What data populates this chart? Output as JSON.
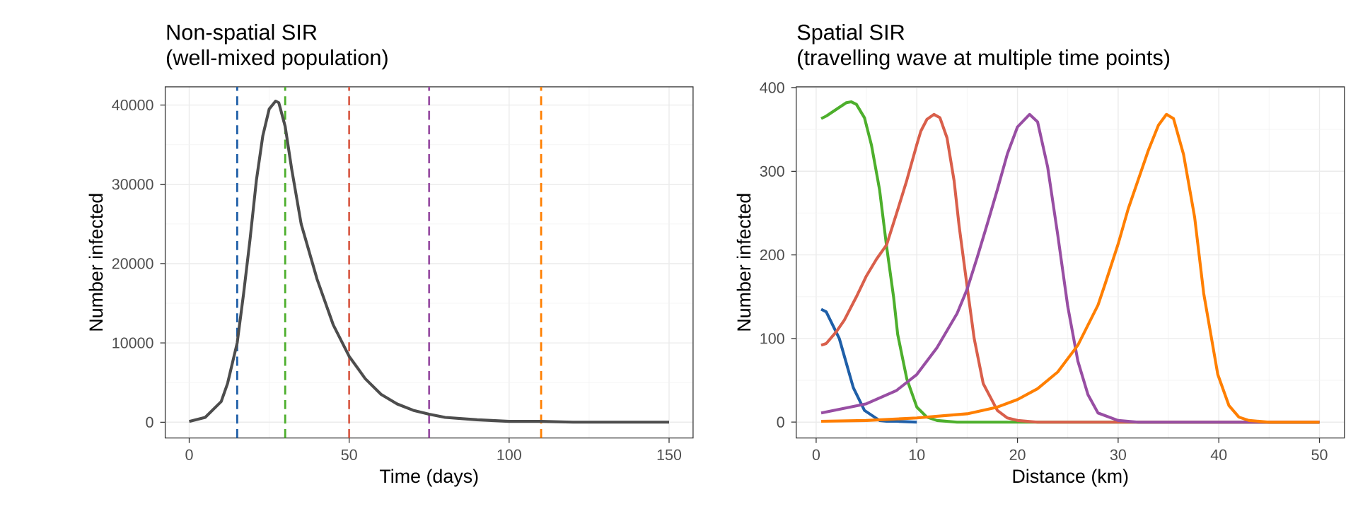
{
  "chart_data": [
    {
      "type": "line",
      "title": "Non-spatial SIR",
      "subtitle": "(well-mixed population)",
      "xlabel": "Time (days)",
      "ylabel": "Number infected",
      "xlim": [
        -7.5,
        157.5
      ],
      "ylim": [
        -2000,
        42300
      ],
      "xticks": [
        0,
        50,
        100,
        150
      ],
      "yticks": [
        0,
        10000,
        20000,
        30000,
        40000
      ],
      "grid": true,
      "series": [
        {
          "color": "#4d4d4d",
          "x": [
            0,
            5,
            10,
            12,
            15,
            17,
            19,
            21,
            23,
            25,
            27,
            28,
            30,
            32,
            35,
            40,
            45,
            50,
            55,
            60,
            65,
            70,
            75,
            80,
            90,
            100,
            110,
            120,
            150
          ],
          "values": [
            100,
            600,
            2600,
            4900,
            10000,
            16200,
            23000,
            30500,
            36100,
            39500,
            40500,
            40300,
            37300,
            32000,
            25000,
            18000,
            12300,
            8300,
            5500,
            3500,
            2300,
            1500,
            1000,
            600,
            300,
            100,
            100,
            0,
            0
          ]
        }
      ],
      "ref_lines": [
        {
          "axis": "x",
          "value": 15,
          "color": "#1f5fa8",
          "line_style": "dashed"
        },
        {
          "axis": "x",
          "value": 30,
          "color": "#4daf2c",
          "line_style": "dashed"
        },
        {
          "axis": "x",
          "value": 50,
          "color": "#d95f4b",
          "line_style": "dashed"
        },
        {
          "axis": "x",
          "value": 75,
          "color": "#984ea3",
          "line_style": "dashed"
        },
        {
          "axis": "x",
          "value": 110,
          "color": "#ff7f00",
          "line_style": "dashed"
        }
      ]
    },
    {
      "type": "line",
      "title": "Spatial SIR",
      "subtitle": "(travelling wave at multiple time points)",
      "xlabel": "Distance (km)",
      "ylabel": "Number infected",
      "xlim": [
        -1.98,
        52.48
      ],
      "ylim": [
        -19,
        401
      ],
      "xticks": [
        0,
        10,
        20,
        30,
        40,
        50
      ],
      "yticks": [
        0,
        100,
        200,
        300,
        400
      ],
      "grid": true,
      "series": [
        {
          "color": "#1f5fa8",
          "x": [
            0.5,
            1,
            2.3,
            3.7,
            4.8,
            6.3,
            7,
            8,
            10
          ],
          "values": [
            135,
            132,
            100,
            41,
            14,
            2,
            1,
            1,
            0
          ]
        },
        {
          "color": "#4daf2c",
          "x": [
            0.5,
            1,
            2,
            3,
            3.5,
            4,
            4.8,
            5.5,
            6.3,
            7,
            7.7,
            8.1,
            9,
            10,
            11,
            12,
            14,
            50
          ],
          "values": [
            363,
            366,
            374,
            382,
            383,
            380,
            364,
            331,
            278,
            210,
            149,
            105,
            52,
            18,
            6,
            2,
            0,
            0
          ]
        },
        {
          "color": "#d95f4b",
          "x": [
            0.5,
            1,
            2,
            2.8,
            4,
            5,
            6,
            7,
            8,
            9,
            10,
            10.4,
            11,
            11.7,
            12.3,
            13,
            13.7,
            14.2,
            15,
            15.7,
            16.6,
            18,
            19,
            20,
            22,
            50
          ],
          "values": [
            92,
            94,
            108,
            122,
            150,
            175,
            195,
            212,
            250,
            289,
            332,
            348,
            362,
            368,
            364,
            340,
            289,
            235,
            162,
            100,
            46,
            14,
            5,
            2,
            0,
            0
          ]
        },
        {
          "color": "#984ea3",
          "x": [
            0.5,
            5,
            8,
            10,
            12,
            14,
            15,
            16,
            17,
            18,
            19,
            20,
            21.2,
            22,
            23,
            24,
            25,
            26,
            27,
            28,
            30,
            32,
            50
          ],
          "values": [
            11,
            22,
            38,
            57,
            89,
            130,
            159,
            197,
            237,
            278,
            321,
            353,
            368,
            359,
            305,
            224,
            138,
            73,
            33,
            11,
            2,
            0,
            0
          ]
        },
        {
          "color": "#ff7f00",
          "x": [
            0.5,
            5,
            10,
            15,
            18,
            20,
            22,
            24,
            26,
            28,
            28.7,
            30,
            31,
            32,
            33,
            34,
            34.8,
            35.5,
            36.5,
            37.6,
            38.5,
            39.9,
            41,
            42,
            43,
            45,
            50
          ],
          "values": [
            1,
            2,
            5,
            10,
            18,
            27,
            40,
            60,
            92,
            140,
            165,
            213,
            255,
            290,
            325,
            355,
            368,
            363,
            320,
            245,
            154,
            57,
            20,
            6,
            2,
            0,
            0
          ]
        }
      ]
    }
  ]
}
